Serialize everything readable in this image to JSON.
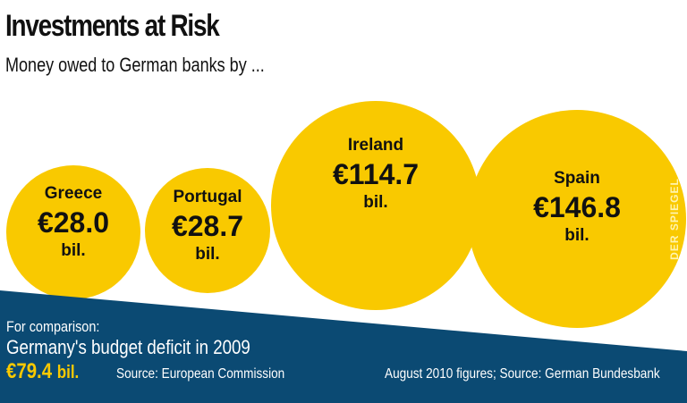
{
  "title": "Investments at Risk",
  "subtitle": "Money owed to German banks by ...",
  "colors": {
    "bubble": "#f9c900",
    "band": "#0b4a73",
    "highlight": "#f9c900"
  },
  "chart_data": {
    "type": "bubble",
    "title": "Investments at Risk",
    "subtitle": "Money owed to German banks by ...",
    "unit": "€ bil.",
    "categories": [
      "Greece",
      "Portugal",
      "Ireland",
      "Spain"
    ],
    "values": [
      28.0,
      28.7,
      114.7,
      146.8
    ],
    "value_labels": [
      "€28.0",
      "€28.7",
      "€114.7",
      "€146.8"
    ],
    "unit_label": "bil."
  },
  "comparison": {
    "intro": "For comparison:",
    "label": "Germany's budget deficit in 2009",
    "value": "€79.4",
    "unit": "bil.",
    "source": "Source: European Commission"
  },
  "footnote": "August 2010 figures; Source: German Bundesbank",
  "watermark": "DER SPIEGEL"
}
